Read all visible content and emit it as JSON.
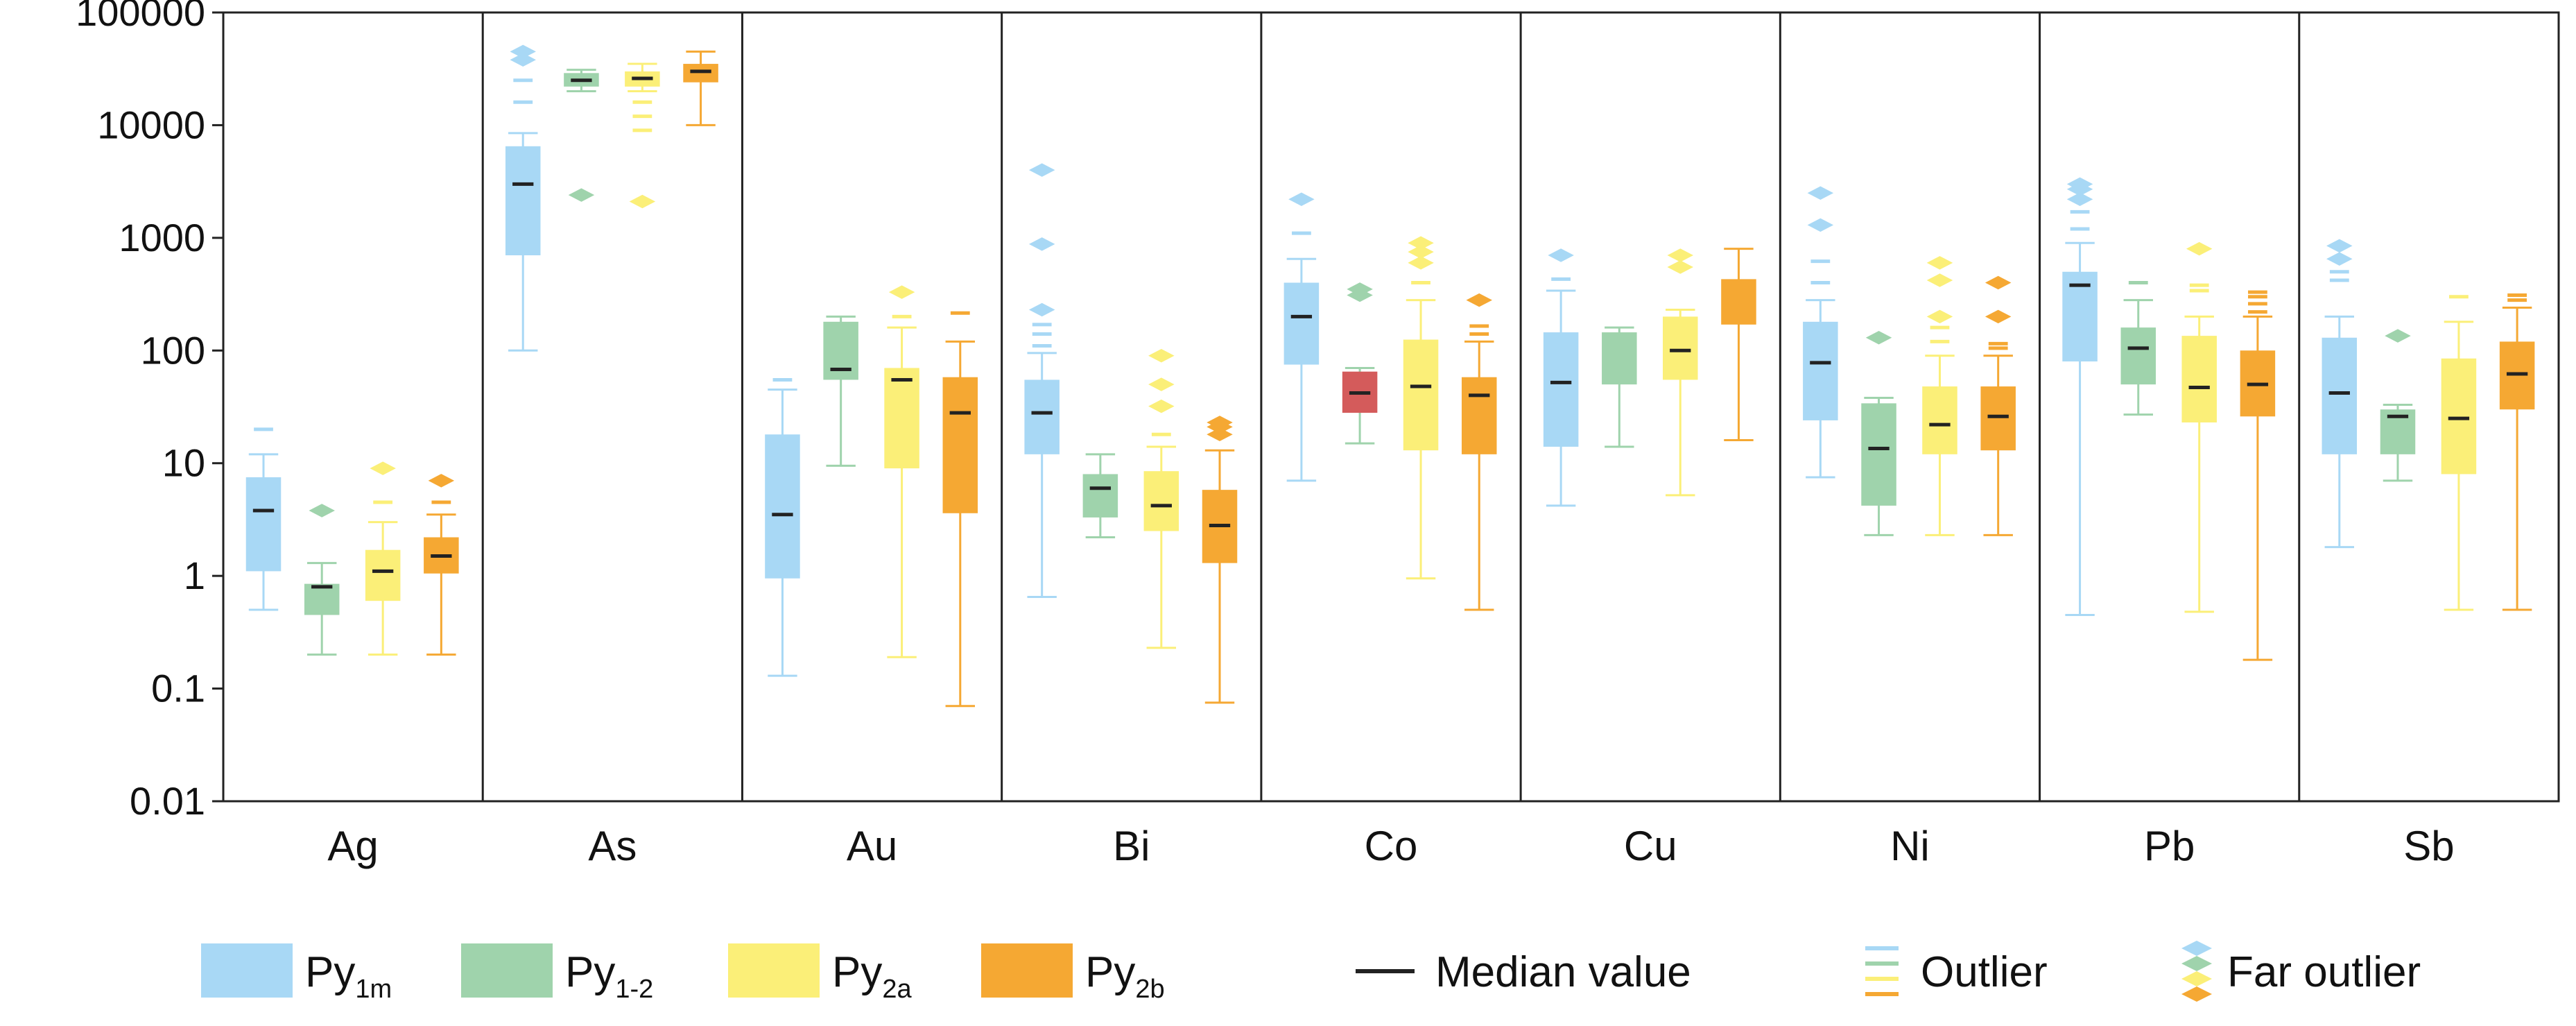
{
  "chart_data": {
    "type": "boxplot",
    "y_scale": "log",
    "ylim": [
      0.01,
      100000
    ],
    "y_ticks": [
      {
        "value": 100000,
        "label": "100000"
      },
      {
        "value": 10000,
        "label": "10000"
      },
      {
        "value": 1000,
        "label": "1000"
      },
      {
        "value": 100,
        "label": "100"
      },
      {
        "value": 10,
        "label": "10"
      },
      {
        "value": 1,
        "label": "1"
      },
      {
        "value": 0.1,
        "label": "0.1"
      },
      {
        "value": 0.01,
        "label": "0.01"
      }
    ],
    "categories": [
      "Ag",
      "As",
      "Au",
      "Bi",
      "Co",
      "Cu",
      "Ni",
      "Pb",
      "Sb"
    ],
    "series_colors": {
      "Py1m": "#a8d8f5",
      "Py1-2": "#9fd3ac",
      "Py2a": "#fbef78",
      "Py2b": "#f5a833",
      "median": "#222222",
      "co_py12_box": "#d45b5b"
    },
    "legend": [
      {
        "key": "Py1m",
        "base": "Py",
        "sub": "1m",
        "kind": "box"
      },
      {
        "key": "Py1-2",
        "base": "Py",
        "sub": "1-2",
        "kind": "box"
      },
      {
        "key": "Py2a",
        "base": "Py",
        "sub": "2a",
        "kind": "box"
      },
      {
        "key": "Py2b",
        "base": "Py",
        "sub": "2b",
        "kind": "box"
      },
      {
        "key": "median",
        "label": "Median value",
        "kind": "line"
      },
      {
        "key": "outlier",
        "label": "Outlier",
        "kind": "dash"
      },
      {
        "key": "far",
        "label": "Far outlier",
        "kind": "diamond"
      }
    ],
    "groups": [
      {
        "category": "Ag",
        "boxes": [
          {
            "series": "Py1m",
            "min": 0.5,
            "q1": 1.1,
            "median": 3.8,
            "q3": 7.5,
            "max": 12,
            "outliers": [
              20
            ],
            "far": []
          },
          {
            "series": "Py1-2",
            "min": 0.2,
            "q1": 0.45,
            "median": 0.8,
            "q3": 0.85,
            "max": 1.3,
            "outliers": [],
            "far": [
              3.8
            ]
          },
          {
            "series": "Py2a",
            "min": 0.2,
            "q1": 0.6,
            "median": 1.1,
            "q3": 1.7,
            "max": 3,
            "outliers": [
              4.5
            ],
            "far": [
              9
            ]
          },
          {
            "series": "Py2b",
            "min": 0.2,
            "q1": 1.05,
            "median": 1.5,
            "q3": 2.2,
            "max": 3.5,
            "outliers": [
              4.5
            ],
            "far": [
              7
            ]
          }
        ]
      },
      {
        "category": "As",
        "boxes": [
          {
            "series": "Py1m",
            "min": 100,
            "q1": 700,
            "median": 3000,
            "q3": 6500,
            "max": 8500,
            "outliers": [
              16000,
              25000
            ],
            "far": [
              38000,
              45000
            ]
          },
          {
            "series": "Py1-2",
            "min": 20000,
            "q1": 22000,
            "median": 25000,
            "q3": 29000,
            "max": 31000,
            "outliers": [],
            "far": [
              2400
            ]
          },
          {
            "series": "Py2a",
            "min": 20000,
            "q1": 22000,
            "median": 26000,
            "q3": 30000,
            "max": 35000,
            "outliers": [
              9000,
              12000,
              16000
            ],
            "far": [
              2100
            ]
          },
          {
            "series": "Py2b",
            "min": 10000,
            "q1": 24000,
            "median": 30000,
            "q3": 35000,
            "max": 45000,
            "outliers": [],
            "far": []
          }
        ]
      },
      {
        "category": "Au",
        "boxes": [
          {
            "series": "Py1m",
            "min": 0.13,
            "q1": 0.95,
            "median": 3.5,
            "q3": 18,
            "max": 45,
            "outliers": [
              55
            ],
            "far": []
          },
          {
            "series": "Py1-2",
            "min": 9.5,
            "q1": 55,
            "median": 68,
            "q3": 180,
            "max": 200,
            "outliers": [],
            "far": []
          },
          {
            "series": "Py2a",
            "min": 0.19,
            "q1": 9,
            "median": 55,
            "q3": 70,
            "max": 160,
            "outliers": [
              200
            ],
            "far": [
              330
            ]
          },
          {
            "series": "Py2b",
            "min": 0.07,
            "q1": 3.6,
            "median": 28,
            "q3": 58,
            "max": 120,
            "outliers": [
              215
            ],
            "far": []
          }
        ]
      },
      {
        "category": "Bi",
        "boxes": [
          {
            "series": "Py1m",
            "min": 0.65,
            "q1": 12,
            "median": 28,
            "q3": 55,
            "max": 95,
            "outliers": [
              110,
              140,
              170
            ],
            "far": [
              230,
              880,
              4000
            ]
          },
          {
            "series": "Py1-2",
            "min": 2.2,
            "q1": 3.3,
            "median": 6,
            "q3": 8,
            "max": 12,
            "outliers": [],
            "far": []
          },
          {
            "series": "Py2a",
            "min": 0.23,
            "q1": 2.5,
            "median": 4.2,
            "q3": 8.5,
            "max": 14,
            "outliers": [
              18
            ],
            "far": [
              32,
              50,
              90
            ]
          },
          {
            "series": "Py2b",
            "min": 0.075,
            "q1": 1.3,
            "median": 2.8,
            "q3": 5.8,
            "max": 13,
            "outliers": [],
            "far": [
              18,
              21,
              23
            ]
          }
        ]
      },
      {
        "category": "Co",
        "boxes": [
          {
            "series": "Py1m",
            "min": 7,
            "q1": 75,
            "median": 200,
            "q3": 400,
            "max": 650,
            "outliers": [
              1100
            ],
            "far": [
              2200
            ]
          },
          {
            "series": "Py1-2",
            "min": 15,
            "q1": 28,
            "median": 42,
            "q3": 65,
            "max": 70,
            "outliers": [],
            "far": [
              310,
              350
            ],
            "box_color_key": "co_py12_box"
          },
          {
            "series": "Py2a",
            "min": 0.95,
            "q1": 13,
            "median": 48,
            "q3": 125,
            "max": 280,
            "outliers": [
              400
            ],
            "far": [
              600,
              750,
              900
            ]
          },
          {
            "series": "Py2b",
            "min": 0.5,
            "q1": 12,
            "median": 40,
            "q3": 58,
            "max": 120,
            "outliers": [
              140,
              165
            ],
            "far": [
              280
            ]
          }
        ]
      },
      {
        "category": "Cu",
        "boxes": [
          {
            "series": "Py1m",
            "min": 4.2,
            "q1": 14,
            "median": 52,
            "q3": 145,
            "max": 340,
            "outliers": [
              430
            ],
            "far": [
              700
            ]
          },
          {
            "series": "Py1-2",
            "min": 14,
            "q1": 50,
            "median": null,
            "q3": 145,
            "max": 160,
            "outliers": [],
            "far": []
          },
          {
            "series": "Py2a",
            "min": 5.2,
            "q1": 55,
            "median": 100,
            "q3": 200,
            "max": 230,
            "outliers": [],
            "far": [
              550,
              700
            ]
          },
          {
            "series": "Py2b",
            "min": 16,
            "q1": 170,
            "median": null,
            "q3": 430,
            "max": 800,
            "outliers": [],
            "far": []
          }
        ]
      },
      {
        "category": "Ni",
        "boxes": [
          {
            "series": "Py1m",
            "min": 7.5,
            "q1": 24,
            "median": 78,
            "q3": 180,
            "max": 280,
            "outliers": [
              400,
              620
            ],
            "far": [
              1300,
              2500
            ]
          },
          {
            "series": "Py1-2",
            "min": 2.3,
            "q1": 4.2,
            "median": 13.5,
            "q3": 34,
            "max": 38,
            "outliers": [],
            "far": [
              130
            ]
          },
          {
            "series": "Py2a",
            "min": 2.3,
            "q1": 12,
            "median": 22,
            "q3": 48,
            "max": 90,
            "outliers": [
              120,
              160
            ],
            "far": [
              200,
              420,
              600
            ]
          },
          {
            "series": "Py2b",
            "min": 2.3,
            "q1": 13,
            "median": 26,
            "q3": 48,
            "max": 90,
            "outliers": [
              105,
              115
            ],
            "far": [
              200,
              400
            ]
          }
        ]
      },
      {
        "category": "Pb",
        "boxes": [
          {
            "series": "Py1m",
            "min": 0.45,
            "q1": 80,
            "median": 380,
            "q3": 500,
            "max": 900,
            "outliers": [
              1200,
              1700
            ],
            "far": [
              2200,
              2700,
              3000
            ]
          },
          {
            "series": "Py1-2",
            "min": 27,
            "q1": 50,
            "median": 105,
            "q3": 160,
            "max": 280,
            "outliers": [
              400
            ],
            "far": []
          },
          {
            "series": "Py2a",
            "min": 0.48,
            "q1": 23,
            "median": 47,
            "q3": 135,
            "max": 200,
            "outliers": [
              340,
              380
            ],
            "far": [
              800
            ]
          },
          {
            "series": "Py2b",
            "min": 0.18,
            "q1": 26,
            "median": 50,
            "q3": 100,
            "max": 200,
            "outliers": [
              220,
              260,
              300,
              330
            ],
            "far": []
          }
        ]
      },
      {
        "category": "Sb",
        "boxes": [
          {
            "series": "Py1m",
            "min": 1.8,
            "q1": 12,
            "median": 42,
            "q3": 130,
            "max": 200,
            "outliers": [
              420,
              500
            ],
            "far": [
              650,
              850
            ]
          },
          {
            "series": "Py1-2",
            "min": 7,
            "q1": 12,
            "median": 26,
            "q3": 30,
            "max": 33,
            "outliers": [],
            "far": [
              135
            ]
          },
          {
            "series": "Py2a",
            "min": 0.5,
            "q1": 8,
            "median": 25,
            "q3": 85,
            "max": 180,
            "outliers": [
              300
            ],
            "far": []
          },
          {
            "series": "Py2b",
            "min": 0.5,
            "q1": 30,
            "median": 62,
            "q3": 120,
            "max": 240,
            "outliers": [
              280,
              310
            ],
            "far": []
          }
        ]
      }
    ]
  }
}
